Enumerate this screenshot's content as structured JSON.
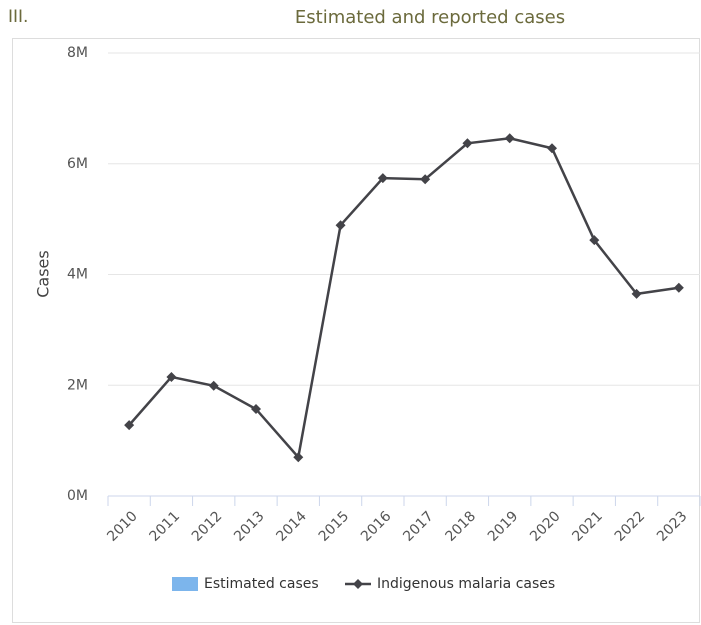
{
  "section": "III.",
  "chart_data": {
    "type": "line",
    "title": "Estimated and reported cases",
    "y_label": "Cases",
    "categories": [
      "2010",
      "2011",
      "2012",
      "2013",
      "2014",
      "2015",
      "2016",
      "2017",
      "2018",
      "2019",
      "2020",
      "2021",
      "2022",
      "2023"
    ],
    "series": [
      {
        "name": "Estimated cases",
        "color": "#7cb5ec",
        "values": [
          null,
          null,
          null,
          null,
          null,
          null,
          null,
          null,
          null,
          null,
          null,
          null,
          null,
          null
        ]
      },
      {
        "name": "Indigenous malaria cases",
        "color": "#434348",
        "values": [
          1280000,
          2150000,
          1990000,
          1570000,
          700000,
          4890000,
          5740000,
          5720000,
          6370000,
          6460000,
          6280000,
          4620000,
          3650000,
          3760000
        ]
      }
    ],
    "ylim": [
      0,
      8000000
    ],
    "yticks": [
      {
        "value": 0,
        "label": "0M"
      },
      {
        "value": 2000000,
        "label": "2M"
      },
      {
        "value": 4000000,
        "label": "4M"
      },
      {
        "value": 6000000,
        "label": "6M"
      },
      {
        "value": 8000000,
        "label": "8M"
      }
    ],
    "grid": true
  }
}
